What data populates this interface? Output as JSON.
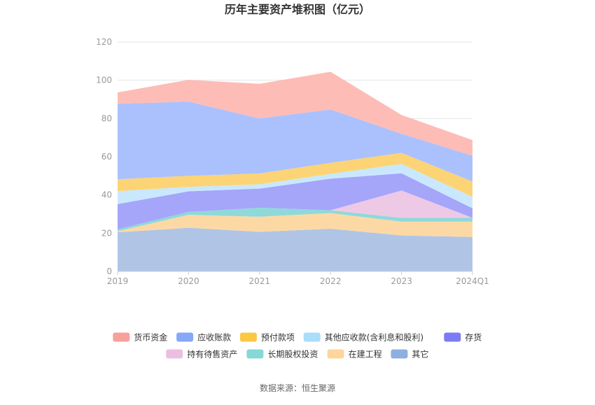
{
  "chart_data": {
    "type": "area",
    "title": "历年主要资产堆积图（亿元）",
    "categories": [
      "2019",
      "2020",
      "2021",
      "2022",
      "2023",
      "2024Q1"
    ],
    "ylim": [
      0,
      120
    ],
    "yticks": [
      "0",
      "20",
      "40",
      "60",
      "80",
      "100",
      "120"
    ],
    "grid": true,
    "legend_position": "bottom",
    "series": [
      {
        "name": "其它",
        "color": "#b0c4e6",
        "values": [
          20.5,
          22.8,
          20.7,
          22.3,
          18.8,
          18.0
        ]
      },
      {
        "name": "在建工程",
        "color": "#fcd9a4",
        "values": [
          0.5,
          6.8,
          7.9,
          8.2,
          7.2,
          8.0
        ]
      },
      {
        "name": "长期股权投资",
        "color": "#8fd9d9",
        "values": [
          1.0,
          1.5,
          4.7,
          1.5,
          2.0,
          2.0
        ]
      },
      {
        "name": "持有待售资产",
        "color": "#edc9e6",
        "values": [
          0,
          0,
          0,
          0,
          14.3,
          0
        ]
      },
      {
        "name": "存货",
        "color": "#a5a5fa",
        "values": [
          13.2,
          10.8,
          10.0,
          16.5,
          9.0,
          5.0
        ]
      },
      {
        "name": "其他应收款(含利息和股利)",
        "color": "#c9e8fd",
        "values": [
          6.8,
          2.3,
          2.3,
          2.5,
          4.9,
          6.0
        ]
      },
      {
        "name": "预付款项",
        "color": "#fcd475",
        "values": [
          6.2,
          5.8,
          5.6,
          5.8,
          5.8,
          8.0
        ]
      },
      {
        "name": "应收账款",
        "color": "#abc1fd",
        "values": [
          39.5,
          38.8,
          28.8,
          27.9,
          10.0,
          13.5
        ]
      },
      {
        "name": "货币资金",
        "color": "#fdbcb6",
        "values": [
          5.9,
          11.4,
          18.1,
          19.7,
          9.8,
          8.2
        ]
      }
    ],
    "legend": [
      {
        "name": "货币资金",
        "color": "#f9a09a"
      },
      {
        "name": "应收账款",
        "color": "#86a8f9"
      },
      {
        "name": "预付款项",
        "color": "#fcc843"
      },
      {
        "name": "其他应收款(含利息和股利)",
        "color": "#a9defb"
      },
      {
        "name": "存货",
        "color": "#7b7cf3"
      },
      {
        "name": "持有待售资产",
        "color": "#ebbfe0"
      },
      {
        "name": "长期股权投资",
        "color": "#84d8d6"
      },
      {
        "name": "在建工程",
        "color": "#fdd59d"
      },
      {
        "name": "其它",
        "color": "#8eb0e0"
      }
    ]
  },
  "source_text": "数据来源：恒生聚源"
}
